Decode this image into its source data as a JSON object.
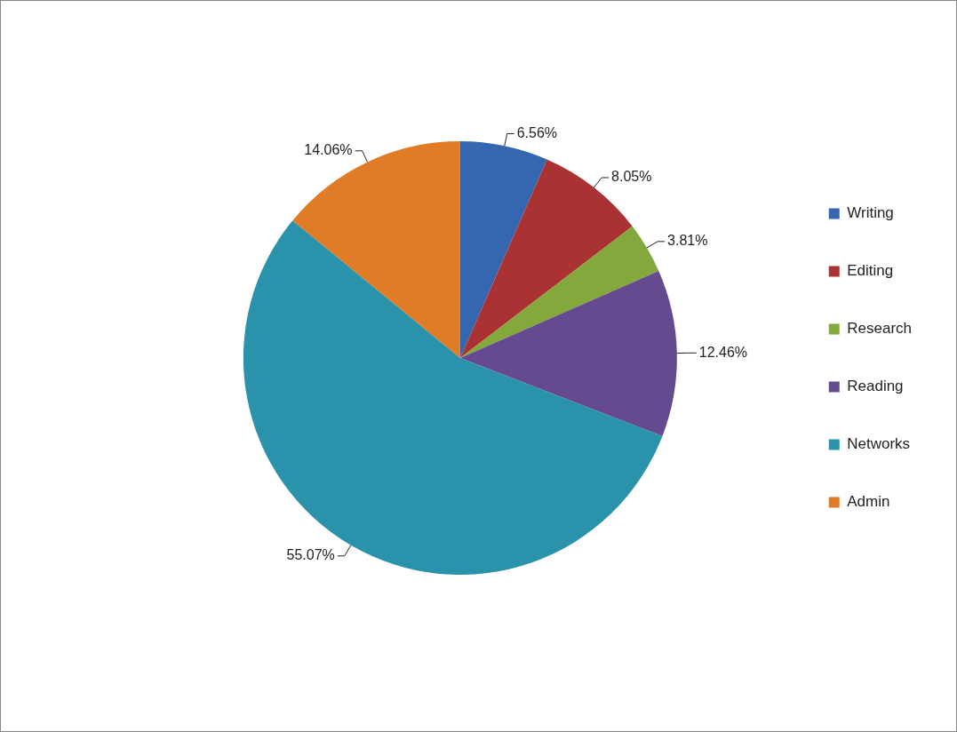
{
  "chart_data": {
    "type": "pie",
    "categories": [
      "Writing",
      "Editing",
      "Research",
      "Reading",
      "Networks",
      "Admin"
    ],
    "values": [
      6.56,
      8.05,
      3.81,
      12.46,
      55.07,
      14.06
    ],
    "colors": [
      "#3567b0",
      "#ab3232",
      "#83a83c",
      "#664a90",
      "#2b92ab",
      "#e07b26"
    ],
    "value_labels": [
      "6.56%",
      "8.05%",
      "3.81%",
      "12.46%",
      "55.07%",
      "14.06%"
    ],
    "legend": "right"
  }
}
